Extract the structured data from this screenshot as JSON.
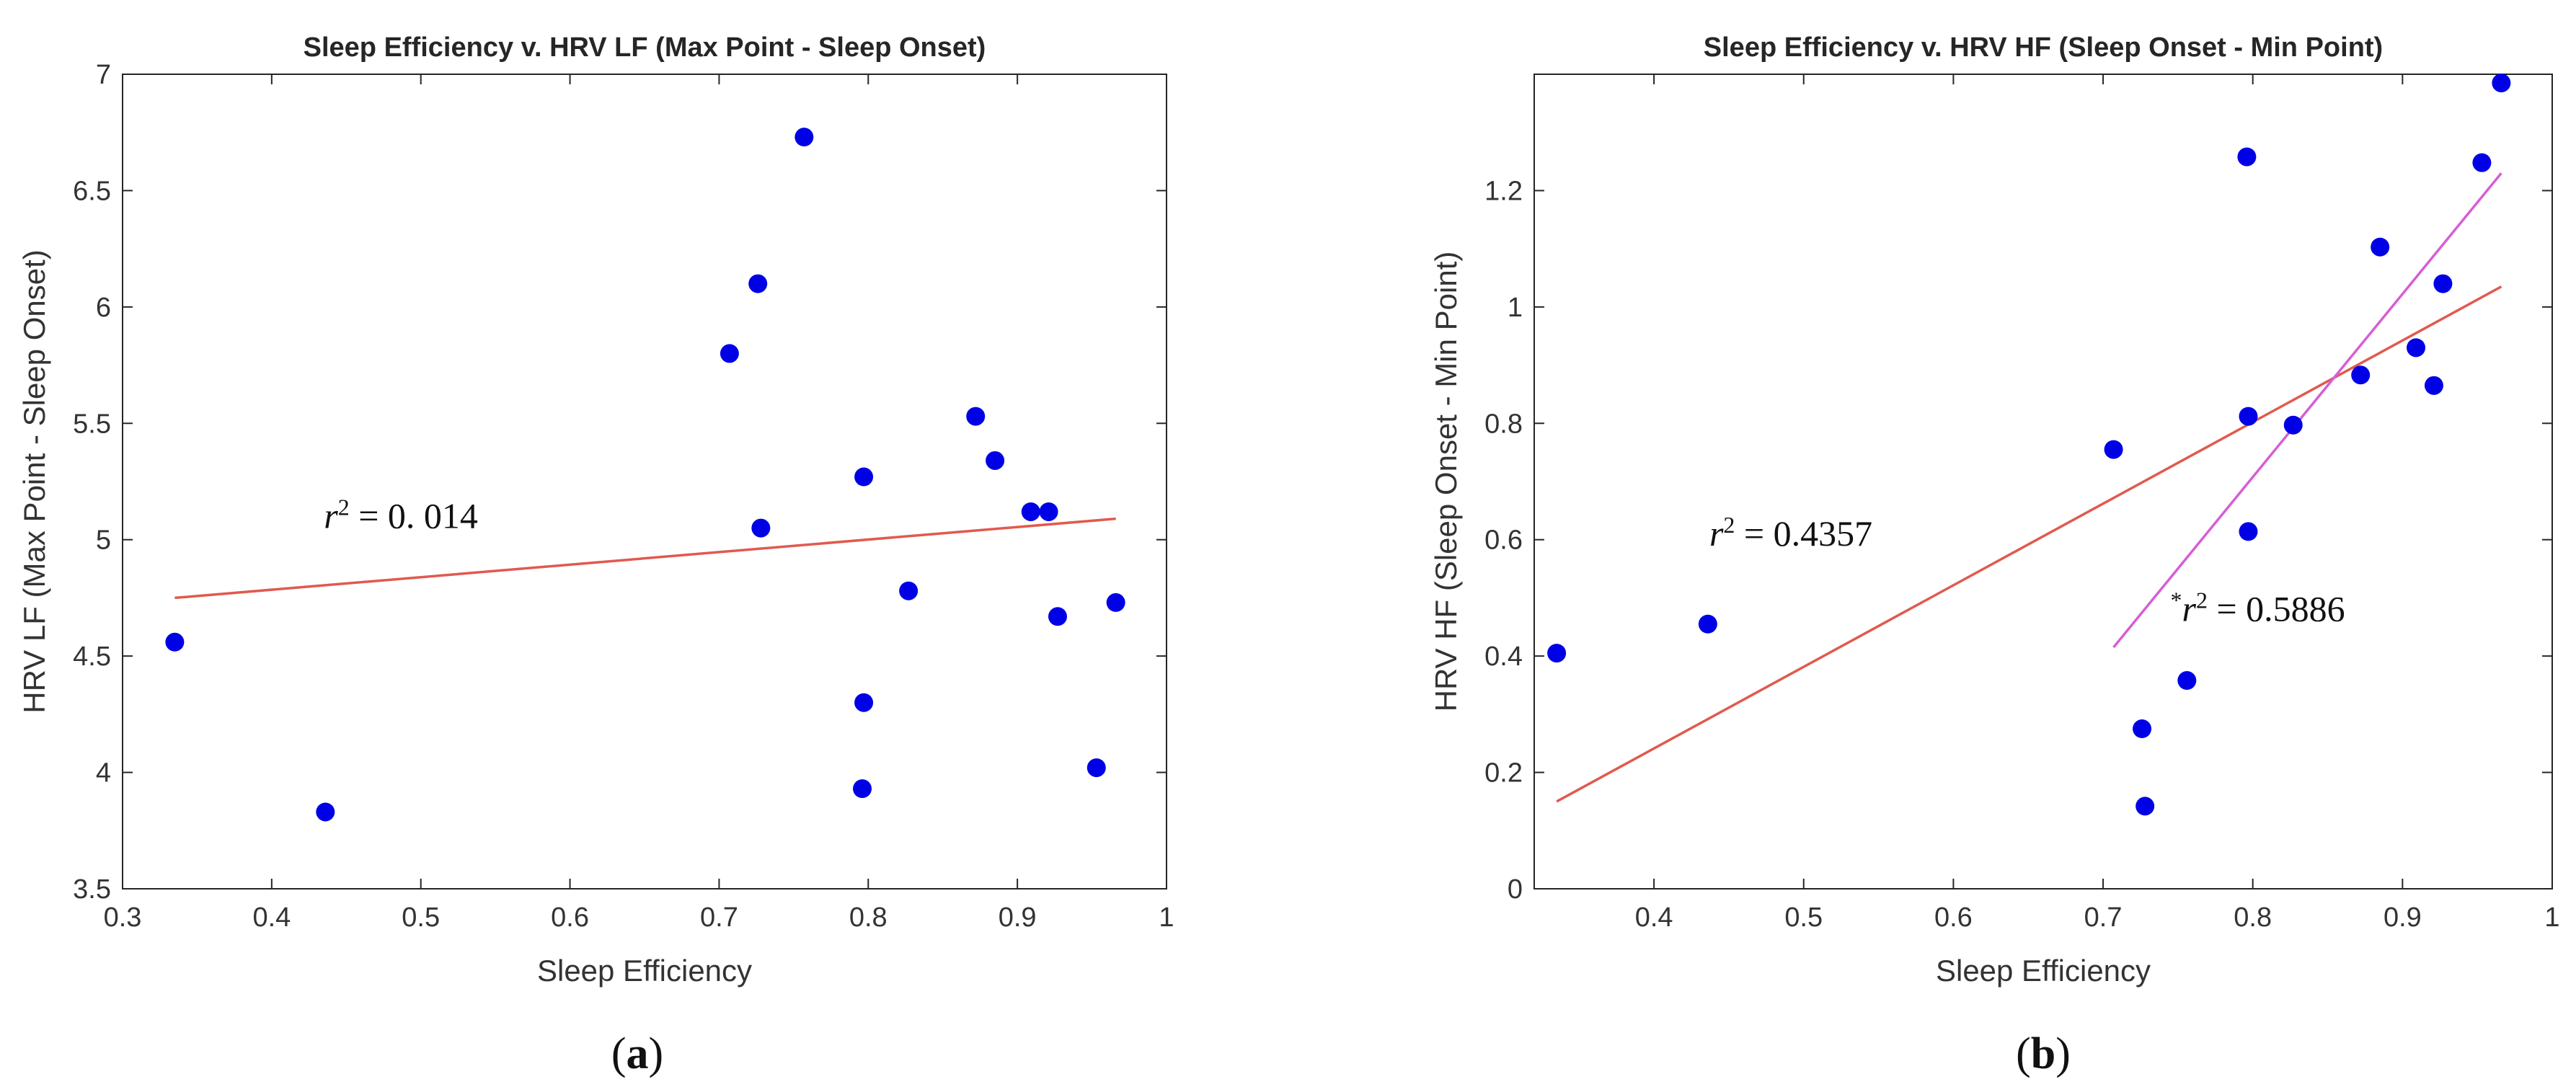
{
  "chart_data": [
    {
      "type": "scatter",
      "panel": "a",
      "title": "Sleep Efficiency v. HRV LF (Max Point - Sleep Onset)",
      "xlabel": "Sleep Efficiency",
      "ylabel": "HRV LF (Max Point - Sleep Onset)",
      "xlim": [
        0.3,
        1.0
      ],
      "ylim": [
        3.5,
        7.0
      ],
      "xticks": [
        0.3,
        0.4,
        0.5,
        0.6,
        0.7,
        0.8,
        0.9,
        1.0
      ],
      "xtick_labels": [
        "0.3",
        "0.4",
        "0.5",
        "0.6",
        "0.7",
        "0.8",
        "0.9",
        "1"
      ],
      "yticks": [
        3.5,
        4.0,
        4.5,
        5.0,
        5.5,
        6.0,
        6.5,
        7.0
      ],
      "ytick_labels": [
        "3.5",
        "4",
        "4.5",
        "5",
        "5.5",
        "6",
        "6.5",
        "7"
      ],
      "points": [
        {
          "x": 0.335,
          "y": 4.56
        },
        {
          "x": 0.436,
          "y": 3.83
        },
        {
          "x": 0.707,
          "y": 5.8
        },
        {
          "x": 0.726,
          "y": 6.1
        },
        {
          "x": 0.728,
          "y": 5.05
        },
        {
          "x": 0.757,
          "y": 6.73
        },
        {
          "x": 0.797,
          "y": 5.27
        },
        {
          "x": 0.797,
          "y": 4.3
        },
        {
          "x": 0.796,
          "y": 3.93
        },
        {
          "x": 0.827,
          "y": 4.78
        },
        {
          "x": 0.872,
          "y": 5.53
        },
        {
          "x": 0.885,
          "y": 5.34
        },
        {
          "x": 0.909,
          "y": 5.12
        },
        {
          "x": 0.921,
          "y": 5.12
        },
        {
          "x": 0.927,
          "y": 4.67
        },
        {
          "x": 0.953,
          "y": 4.02
        },
        {
          "x": 0.966,
          "y": 4.73
        }
      ],
      "fit_lines": [
        {
          "color": "#e05a4f",
          "x": [
            0.335,
            0.966
          ],
          "y": [
            4.75,
            5.09
          ]
        }
      ],
      "annotations": [
        {
          "prefix": "",
          "var": "r",
          "sup": "2",
          "text": " = 0. 014",
          "x": 0.435,
          "y": 5.05
        }
      ],
      "marker_color": "#0000e6",
      "caption": {
        "open": "(",
        "letter": "a",
        "close": ")"
      }
    },
    {
      "type": "scatter",
      "panel": "b",
      "title": "Sleep Efficiency v. HRV HF (Sleep Onset - Min Point)",
      "xlabel": "Sleep Efficiency",
      "ylabel": "HRV HF (Sleep Onset - Min Point)",
      "xlim": [
        0.32,
        1.0
      ],
      "ylim": [
        0.0,
        1.4
      ],
      "xticks": [
        0.4,
        0.5,
        0.6,
        0.7,
        0.8,
        0.9,
        1.0
      ],
      "xtick_labels": [
        "0.4",
        "0.5",
        "0.6",
        "0.7",
        "0.8",
        "0.9",
        "1"
      ],
      "yticks": [
        0.0,
        0.2,
        0.4,
        0.6,
        0.8,
        1.0,
        1.2
      ],
      "ytick_labels": [
        "0",
        "0.2",
        "0.4",
        "0.6",
        "0.8",
        "1",
        "1.2"
      ],
      "points": [
        {
          "x": 0.335,
          "y": 0.405
        },
        {
          "x": 0.436,
          "y": 0.455
        },
        {
          "x": 0.707,
          "y": 0.755
        },
        {
          "x": 0.726,
          "y": 0.275
        },
        {
          "x": 0.728,
          "y": 0.142
        },
        {
          "x": 0.756,
          "y": 0.358
        },
        {
          "x": 0.796,
          "y": 1.258
        },
        {
          "x": 0.797,
          "y": 0.812
        },
        {
          "x": 0.797,
          "y": 0.614
        },
        {
          "x": 0.827,
          "y": 0.797
        },
        {
          "x": 0.872,
          "y": 0.883
        },
        {
          "x": 0.885,
          "y": 1.103
        },
        {
          "x": 0.909,
          "y": 0.93
        },
        {
          "x": 0.921,
          "y": 0.865
        },
        {
          "x": 0.927,
          "y": 1.04
        },
        {
          "x": 0.953,
          "y": 1.248
        },
        {
          "x": 0.966,
          "y": 1.385
        }
      ],
      "fit_lines": [
        {
          "color": "#e05a4f",
          "x": [
            0.335,
            0.966
          ],
          "y": [
            0.15,
            1.035
          ]
        },
        {
          "color": "#d65ed6",
          "x": [
            0.707,
            0.966
          ],
          "y": [
            0.415,
            1.23
          ]
        }
      ],
      "annotations": [
        {
          "prefix": "",
          "var": "r",
          "sup": "2",
          "text": " = 0.4357",
          "x": 0.437,
          "y": 0.59
        },
        {
          "prefix": "*",
          "var": "r",
          "sup": "2",
          "text": " = 0.5886",
          "x": 0.745,
          "y": 0.46
        }
      ],
      "marker_color": "#0000e6",
      "caption": {
        "open": "(",
        "letter": "b",
        "close": ")"
      }
    }
  ]
}
